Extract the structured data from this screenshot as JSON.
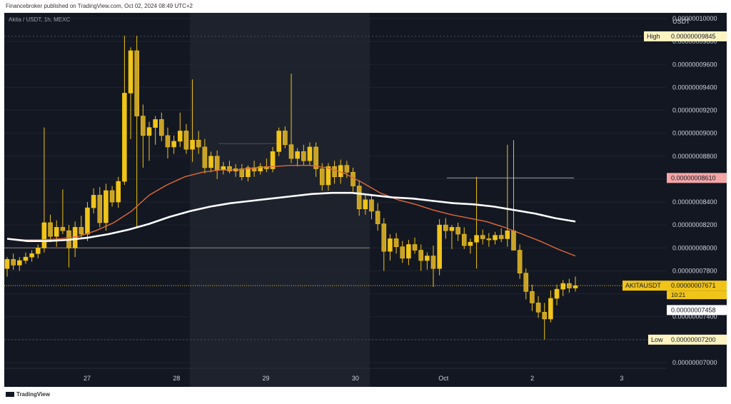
{
  "header": {
    "publisher": "Financebroker published on TradingView.com, Oct 02, 2024 08:49 UTC+2"
  },
  "symbol_label": "Akita / USDT, 1h, MEXC",
  "footer": {
    "brand": "TradingView"
  },
  "colors": {
    "background": "#131722",
    "candle": "#f0c419",
    "ma_fast": "#e06a3a",
    "ma_slow": "#ffffff",
    "price_tag": "#f0c419",
    "level_tag": "#f4a6a6"
  },
  "chart_data": {
    "type": "candlestick",
    "currency_label": "USDT",
    "y_ticks": [
      "0.00000010000",
      "0.00000009800",
      "0.00000009600",
      "0.00000009400",
      "0.00000009200",
      "0.00000009000",
      "0.00000008800",
      "0.00000008600",
      "0.00000008400",
      "0.00000008200",
      "0.00000008000",
      "0.00000007800",
      "0.00000007600",
      "0.00000007400",
      "0.00000007200",
      "0.00000007000"
    ],
    "y_tick_values": [
      1e-07,
      9.8e-08,
      9.6e-08,
      9.4e-08,
      9.2e-08,
      9e-08,
      8.8e-08,
      8.6e-08,
      8.4e-08,
      8.2e-08,
      8e-08,
      7.8e-08,
      7.6e-08,
      7.4e-08,
      7.2e-08,
      7e-08
    ],
    "ylim": [
      6.95e-08,
      1.005e-07
    ],
    "x_ticks": [
      {
        "label": "27",
        "x": 0.125
      },
      {
        "label": "28",
        "x": 0.26
      },
      {
        "label": "29",
        "x": 0.395
      },
      {
        "label": "30",
        "x": 0.53
      },
      {
        "label": "Oct",
        "x": 0.663
      },
      {
        "label": "2",
        "x": 0.797
      },
      {
        "label": "3",
        "x": 0.932
      }
    ],
    "annotations": {
      "high": {
        "label": "High",
        "value_text": "0.00000009845",
        "value": 9.845e-08
      },
      "low": {
        "label": "Low",
        "value_text": "0.00000007200",
        "value": 7.2e-08
      },
      "level": {
        "value_text": "0.00000008610",
        "value": 8.61e-08
      },
      "current": {
        "label": "AKITAUSDT",
        "value_text": "0.00000007671",
        "timer": "10:21",
        "value": 7.671e-08
      },
      "ma_tag": {
        "value_text": "0.00000007458",
        "value": 7.458e-08
      }
    },
    "candles": [
      [
        7.82e-08,
        7.92e-08,
        7.75e-08,
        7.9e-08
      ],
      [
        7.9e-08,
        7.95e-08,
        7.81e-08,
        7.85e-08
      ],
      [
        7.85e-08,
        7.92e-08,
        7.8e-08,
        7.89e-08
      ],
      [
        7.89e-08,
        7.96e-08,
        7.86e-08,
        7.92e-08
      ],
      [
        7.92e-08,
        7.98e-08,
        7.88e-08,
        7.95e-08
      ],
      [
        7.95e-08,
        8.03e-08,
        7.91e-08,
        8e-08
      ],
      [
        8e-08,
        9.05e-08,
        7.96e-08,
        8.22e-08
      ],
      [
        8.22e-08,
        8.29e-08,
        8.05e-08,
        8.1e-08
      ],
      [
        8.1e-08,
        8.24e-08,
        8.01e-08,
        8.18e-08
      ],
      [
        8.18e-08,
        8.51e-08,
        8.12e-08,
        8.15e-08
      ],
      [
        8.15e-08,
        8.2e-08,
        7.83e-08,
        8e-08
      ],
      [
        8e-08,
        8.23e-08,
        7.92e-08,
        8.18e-08
      ],
      [
        8.18e-08,
        8.28e-08,
        8.08e-08,
        8.12e-08
      ],
      [
        8.12e-08,
        8.4e-08,
        8.06e-08,
        8.35e-08
      ],
      [
        8.35e-08,
        8.52e-08,
        8.3e-08,
        8.46e-08
      ],
      [
        8.46e-08,
        8.53e-08,
        8.18e-08,
        8.22e-08
      ],
      [
        8.22e-08,
        8.56e-08,
        8.15e-08,
        8.5e-08
      ],
      [
        8.5e-08,
        8.54e-08,
        8.36e-08,
        8.4e-08
      ],
      [
        8.4e-08,
        8.62e-08,
        8.35e-08,
        8.58e-08
      ],
      [
        8.58e-08,
        9.85e-08,
        8.55e-08,
        9.35e-08
      ],
      [
        9.35e-08,
        9.75e-08,
        8.95e-08,
        9.72e-08
      ],
      [
        9.72e-08,
        9.85e-08,
        8.18e-08,
        9.15e-08
      ],
      [
        9.15e-08,
        9.25e-08,
        8.7e-08,
        8.98e-08
      ],
      [
        8.98e-08,
        9.1e-08,
        8.76e-08,
        9.05e-08
      ],
      [
        9.05e-08,
        9.15e-08,
        8.9e-08,
        9.12e-08
      ],
      [
        9.12e-08,
        9.18e-08,
        8.93e-08,
        8.98e-08
      ],
      [
        8.98e-08,
        9.05e-08,
        8.78e-08,
        8.88e-08
      ],
      [
        8.88e-08,
        8.98e-08,
        8.82e-08,
        8.93e-08
      ],
      [
        8.93e-08,
        9.18e-08,
        8.88e-08,
        9.02e-08
      ],
      [
        9.02e-08,
        9.08e-08,
        8.82e-08,
        8.86e-08
      ],
      [
        8.86e-08,
        9.47e-08,
        8.75e-08,
        8.94e-08
      ],
      [
        8.94e-08,
        9.02e-08,
        8.82e-08,
        8.88e-08
      ],
      [
        8.88e-08,
        8.95e-08,
        8.65e-08,
        8.7e-08
      ],
      [
        8.7e-08,
        8.84e-08,
        8.66e-08,
        8.8e-08
      ],
      [
        8.8e-08,
        8.85e-08,
        8.6e-08,
        8.68e-08
      ],
      [
        8.68e-08,
        8.75e-08,
        8.64e-08,
        8.71e-08
      ],
      [
        8.71e-08,
        8.76e-08,
        8.65e-08,
        8.67e-08
      ],
      [
        8.67e-08,
        8.73e-08,
        8.62e-08,
        8.69e-08
      ],
      [
        8.69e-08,
        8.73e-08,
        8.59e-08,
        8.62e-08
      ],
      [
        8.62e-08,
        8.72e-08,
        8.58e-08,
        8.7e-08
      ],
      [
        8.7e-08,
        8.76e-08,
        8.62e-08,
        8.67e-08
      ],
      [
        8.67e-08,
        8.74e-08,
        8.64e-08,
        8.71e-08
      ],
      [
        8.71e-08,
        8.78e-08,
        8.66e-08,
        8.69e-08
      ],
      [
        8.69e-08,
        8.88e-08,
        8.66e-08,
        8.84e-08
      ],
      [
        8.84e-08,
        9.05e-08,
        8.8e-08,
        9.02e-08
      ],
      [
        9.02e-08,
        9.06e-08,
        8.87e-08,
        8.9e-08
      ],
      [
        8.9e-08,
        9.52e-08,
        8.74e-08,
        8.78e-08
      ],
      [
        8.78e-08,
        8.87e-08,
        8.71e-08,
        8.84e-08
      ],
      [
        8.84e-08,
        8.9e-08,
        8.72e-08,
        8.76e-08
      ],
      [
        8.76e-08,
        8.92e-08,
        8.72e-08,
        8.88e-08
      ],
      [
        8.88e-08,
        8.92e-08,
        8.62e-08,
        8.69e-08
      ],
      [
        8.69e-08,
        8.74e-08,
        8.5e-08,
        8.55e-08
      ],
      [
        8.55e-08,
        8.74e-08,
        8.5e-08,
        8.71e-08
      ],
      [
        8.71e-08,
        8.76e-08,
        8.56e-08,
        8.62e-08
      ],
      [
        8.62e-08,
        8.77e-08,
        8.56e-08,
        8.72e-08
      ],
      [
        8.72e-08,
        8.76e-08,
        8.61e-08,
        8.66e-08
      ],
      [
        8.66e-08,
        8.7e-08,
        8.49e-08,
        8.54e-08
      ],
      [
        8.54e-08,
        8.59e-08,
        8.28e-08,
        8.34e-08
      ],
      [
        8.34e-08,
        8.47e-08,
        8.29e-08,
        8.42e-08
      ],
      [
        8.42e-08,
        8.47e-08,
        8.25e-08,
        8.32e-08
      ],
      [
        8.32e-08,
        8.39e-08,
        8.15e-08,
        8.21e-08
      ],
      [
        8.21e-08,
        8.26e-08,
        7.8e-08,
        7.97e-08
      ],
      [
        7.97e-08,
        8.12e-08,
        7.89e-08,
        8.08e-08
      ],
      [
        8.08e-08,
        8.13e-08,
        7.95e-08,
        8.01e-08
      ],
      [
        8.01e-08,
        8.06e-08,
        7.87e-08,
        7.91e-08
      ],
      [
        7.91e-08,
        8.07e-08,
        7.85e-08,
        8.03e-08
      ],
      [
        8.03e-08,
        8.09e-08,
        7.95e-08,
        7.98e-08
      ],
      [
        7.98e-08,
        8.03e-08,
        7.8e-08,
        7.89e-08
      ],
      [
        7.89e-08,
        7.96e-08,
        7.81e-08,
        7.93e-08
      ],
      [
        7.93e-08,
        8.02e-08,
        7.66e-08,
        7.82e-08
      ],
      [
        7.82e-08,
        8.25e-08,
        7.76e-08,
        8.2e-08
      ],
      [
        8.2e-08,
        8.26e-08,
        8.08e-08,
        8.15e-08
      ],
      [
        8.15e-08,
        8.2e-08,
        7.99e-08,
        8.18e-08
      ],
      [
        8.18e-08,
        8.22e-08,
        8.06e-08,
        8.12e-08
      ],
      [
        8.12e-08,
        8.18e-08,
        7.99e-08,
        8.02e-08
      ],
      [
        8.02e-08,
        8.08e-08,
        7.95e-08,
        8.05e-08
      ],
      [
        8.05e-08,
        8.62e-08,
        7.82e-08,
        8.11e-08
      ],
      [
        8.11e-08,
        8.16e-08,
        8.03e-08,
        8.08e-08
      ],
      [
        8.08e-08,
        8.13e-08,
        8.01e-08,
        8.07e-08
      ],
      [
        8.07e-08,
        8.14e-08,
        8.03e-08,
        8.11e-08
      ],
      [
        8.11e-08,
        8.17e-08,
        8.05e-08,
        8.08e-08
      ],
      [
        8.08e-08,
        8.9e-08,
        8.01e-08,
        8.15e-08
      ],
      [
        8.15e-08,
        8.94e-08,
        8.01e-08,
        7.98e-08
      ],
      [
        7.98e-08,
        8.03e-08,
        7.73e-08,
        7.78e-08
      ],
      [
        7.78e-08,
        7.82e-08,
        7.55e-08,
        7.62e-08
      ],
      [
        7.62e-08,
        7.68e-08,
        7.45e-08,
        7.52e-08
      ],
      [
        7.52e-08,
        7.58e-08,
        7.39e-08,
        7.44e-08
      ],
      [
        7.44e-08,
        7.52e-08,
        7.2e-08,
        7.38e-08
      ],
      [
        7.38e-08,
        7.63e-08,
        7.35e-08,
        7.56e-08
      ],
      [
        7.56e-08,
        7.68e-08,
        7.5e-08,
        7.64e-08
      ],
      [
        7.64e-08,
        7.72e-08,
        7.58e-08,
        7.69e-08
      ],
      [
        7.69e-08,
        7.73e-08,
        7.61e-08,
        7.65e-08
      ],
      [
        7.65e-08,
        7.75e-08,
        7.62e-08,
        7.67e-08
      ]
    ],
    "ma_fast": [
      8.08e-08,
      8.07e-08,
      8.07e-08,
      8.08e-08,
      8.1e-08,
      8.15e-08,
      8.22e-08,
      8.32e-08,
      8.46e-08,
      8.55e-08,
      8.62e-08,
      8.66e-08,
      8.68e-08,
      8.68e-08,
      8.7e-08,
      8.71e-08,
      8.72e-08,
      8.72e-08,
      8.7e-08,
      8.65e-08,
      8.57e-08,
      8.48e-08,
      8.42e-08,
      8.38e-08,
      8.33e-08,
      8.29e-08,
      8.26e-08,
      8.23e-08,
      8.18e-08,
      8.12e-08,
      8.06e-08,
      7.99e-08,
      7.93e-08
    ],
    "ma_slow": [
      8.08e-08,
      8.06e-08,
      8.06e-08,
      8.07e-08,
      8.09e-08,
      8.12e-08,
      8.16e-08,
      8.21e-08,
      8.27e-08,
      8.32e-08,
      8.36e-08,
      8.39e-08,
      8.41e-08,
      8.43e-08,
      8.45e-08,
      8.47e-08,
      8.48e-08,
      8.48e-08,
      8.46e-08,
      8.44e-08,
      8.43e-08,
      8.41e-08,
      8.39e-08,
      8.38e-08,
      8.36e-08,
      8.33e-08,
      8.3e-08,
      8.26e-08,
      8.23e-08
    ]
  }
}
